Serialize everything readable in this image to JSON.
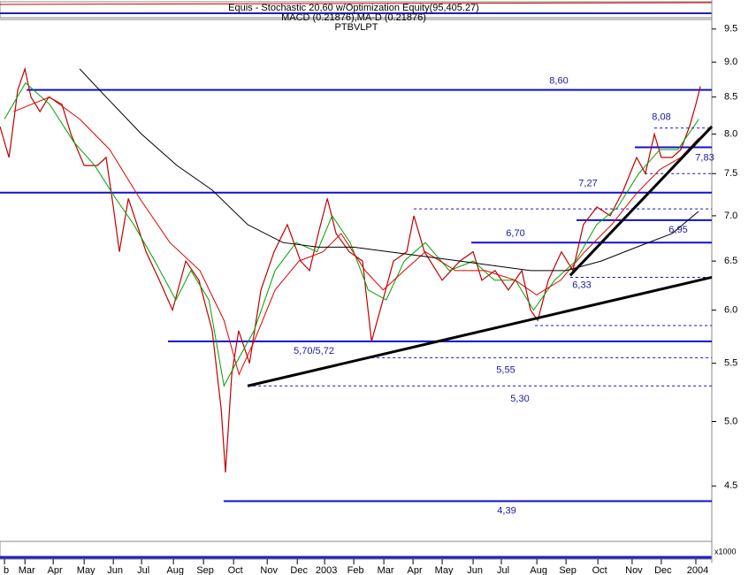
{
  "chart_data": {
    "type": "line",
    "header": [
      "Equis - Stochastic 20,60 w/Optimization Equity(95,405.27)",
      "MACD (0.21876),MA-D (0.21876)",
      "PTBVLPT"
    ],
    "volume_unit": "x1000",
    "log_y": true,
    "xlim": [
      -0.15,
      23.53
    ],
    "xticks": [
      {
        "value": 0,
        "label": "b"
      },
      {
        "value": 0.68,
        "label": "Mar"
      },
      {
        "value": 1.62,
        "label": "Apr"
      },
      {
        "value": 2.65,
        "label": "May"
      },
      {
        "value": 3.62,
        "label": "Jun"
      },
      {
        "value": 4.56,
        "label": "Jul"
      },
      {
        "value": 5.62,
        "label": "Aug"
      },
      {
        "value": 6.62,
        "label": "Sep"
      },
      {
        "value": 7.62,
        "label": "Oct"
      },
      {
        "value": 8.74,
        "label": "Nov"
      },
      {
        "value": 9.74,
        "label": "Dec"
      },
      {
        "value": 10.65,
        "label": "2003"
      },
      {
        "value": 11.62,
        "label": "Feb"
      },
      {
        "value": 12.62,
        "label": "Mar"
      },
      {
        "value": 13.59,
        "label": "Apr"
      },
      {
        "value": 14.56,
        "label": "May"
      },
      {
        "value": 15.59,
        "label": "Jun"
      },
      {
        "value": 16.53,
        "label": "Jul"
      },
      {
        "value": 17.71,
        "label": "Aug"
      },
      {
        "value": 18.68,
        "label": "Sep"
      },
      {
        "value": 19.74,
        "label": "Oct"
      },
      {
        "value": 20.88,
        "label": "Nov"
      },
      {
        "value": 21.85,
        "label": "Dec"
      },
      {
        "value": 23.0,
        "label": "2004"
      }
    ],
    "ylim": [
      4.11,
      9.65
    ],
    "yticks": [
      9.5,
      {
        "value": 9,
        "label": "9.0"
      },
      8.5,
      {
        "value": 8,
        "label": "8.0"
      },
      7.5,
      {
        "value": 7,
        "label": "7.0"
      },
      6.5,
      {
        "value": 6,
        "label": "6.0"
      },
      5.5,
      {
        "value": 5,
        "label": "5.0"
      },
      4.5
    ],
    "series": [
      {
        "color": "#c00000",
        "width": 1.2,
        "x": [
          -0.15,
          0.15,
          0.44,
          0.68,
          0.88,
          1.18,
          1.47,
          1.91,
          2.21,
          2.65,
          3.09,
          3.38,
          3.62,
          3.82,
          4.12,
          4.41,
          4.71,
          5.15,
          5.59,
          6.03,
          6.47,
          6.91,
          7.21,
          7.35,
          7.56,
          7.79,
          8.15,
          8.53,
          8.97,
          9.41,
          9.85,
          10.15,
          10.44,
          10.74,
          11.03,
          11.47,
          11.91,
          12.21,
          12.5,
          12.94,
          13.38,
          13.62,
          13.97,
          14.56,
          15.15,
          15.59,
          15.88,
          16.32,
          16.76,
          17.21,
          17.5,
          17.74,
          18.09,
          18.53,
          18.91,
          19.26,
          19.71,
          20.15,
          20.59,
          21.03,
          21.32,
          21.62,
          21.85,
          22.21,
          22.5,
          22.79,
          23.0,
          23.15
        ],
        "values": [
          8.1,
          7.7,
          8.6,
          8.9,
          8.5,
          8.3,
          8.5,
          8.4,
          8.0,
          7.6,
          7.6,
          7.7,
          7.1,
          6.6,
          7.2,
          6.9,
          6.6,
          6.3,
          6.0,
          6.5,
          6.3,
          5.8,
          5.1,
          4.6,
          5.4,
          5.8,
          5.5,
          6.2,
          6.6,
          6.9,
          6.5,
          6.4,
          6.8,
          7.2,
          6.8,
          6.6,
          6.5,
          5.7,
          6.0,
          6.5,
          6.6,
          7.0,
          6.6,
          6.3,
          6.5,
          6.6,
          6.3,
          6.4,
          6.2,
          6.4,
          6.0,
          5.9,
          6.3,
          6.6,
          6.4,
          6.9,
          7.1,
          7.0,
          7.3,
          7.7,
          7.5,
          8.0,
          7.7,
          7.7,
          7.8,
          8.1,
          8.4,
          8.65
        ]
      },
      {
        "color": "#00a000",
        "width": 1,
        "x": [
          0,
          0.7,
          1.5,
          2.3,
          3.0,
          3.7,
          4.3,
          5.0,
          5.7,
          6.2,
          6.8,
          7.3,
          7.7,
          8.3,
          9.0,
          9.7,
          10.4,
          10.9,
          11.5,
          12.1,
          12.7,
          13.3,
          14.0,
          14.8,
          15.6,
          16.3,
          17.0,
          17.6,
          18.3,
          19.0,
          19.7,
          20.4,
          21.1,
          21.8,
          22.4,
          23.1
        ],
        "values": [
          8.2,
          8.7,
          8.4,
          7.9,
          7.6,
          7.2,
          6.9,
          6.5,
          6.1,
          6.4,
          6.1,
          5.3,
          5.5,
          5.8,
          6.4,
          6.7,
          6.6,
          7.0,
          6.7,
          6.2,
          6.1,
          6.5,
          6.7,
          6.4,
          6.5,
          6.3,
          6.3,
          6.0,
          6.3,
          6.5,
          6.9,
          7.1,
          7.5,
          7.8,
          7.8,
          8.2
        ]
      },
      {
        "color": "#e00000",
        "width": 1,
        "x": [
          0.3,
          1.5,
          2.5,
          3.5,
          4.5,
          5.5,
          6.5,
          7.3,
          7.8,
          8.3,
          9.0,
          9.8,
          10.6,
          11.2,
          12.0,
          12.6,
          13.3,
          14.0,
          15.0,
          16.0,
          17.0,
          17.7,
          18.5,
          19.3,
          20.2,
          21.0,
          21.8,
          22.5,
          23.1
        ],
        "values": [
          8.3,
          8.5,
          8.2,
          7.8,
          7.2,
          6.7,
          6.4,
          5.9,
          5.4,
          5.7,
          6.2,
          6.5,
          6.6,
          6.8,
          6.4,
          6.2,
          6.4,
          6.6,
          6.4,
          6.4,
          6.3,
          6.15,
          6.3,
          6.6,
          6.9,
          7.25,
          7.55,
          7.7,
          7.95
        ]
      },
      {
        "color": "#000000",
        "width": 1,
        "x": [
          2.5,
          3.38,
          4.56,
          5.74,
          6.91,
          8.09,
          9.26,
          10.44,
          11.62,
          12.79,
          13.97,
          15.15,
          16.32,
          17.5,
          18.68,
          19.85,
          21.03,
          22.21,
          23.09
        ],
        "values": [
          8.9,
          8.5,
          8.0,
          7.6,
          7.3,
          6.9,
          6.7,
          6.65,
          6.65,
          6.6,
          6.55,
          6.5,
          6.45,
          6.4,
          6.4,
          6.5,
          6.65,
          6.8,
          7.05
        ]
      }
    ],
    "levels": [
      {
        "value": 8.6,
        "label": "8,60",
        "start": 0.74,
        "dashed": false
      },
      {
        "value": 8.08,
        "label": "8,08",
        "start": 21.62,
        "dashed": true
      },
      {
        "value": 7.83,
        "label": "7,83",
        "start": 20.97,
        "dashed": false
      },
      {
        "value": 7.5,
        "label": null,
        "start": 21.3,
        "dashed": true
      },
      {
        "value": 7.27,
        "label": "7,27",
        "start": -0.15,
        "dashed": false
      },
      {
        "value": 7.08,
        "label": null,
        "start": 13.62,
        "dashed": true
      },
      {
        "value": 6.95,
        "label": "6,95",
        "start": 19.03,
        "dashed": false
      },
      {
        "value": 6.7,
        "label": "6,70",
        "start": 15.53,
        "dashed": false
      },
      {
        "value": 6.33,
        "label": "6,33",
        "start": 18.82,
        "dashed": true
      },
      {
        "value": 5.85,
        "label": null,
        "start": 17.65,
        "dashed": true
      },
      {
        "value": 5.7,
        "label": "5,70/5,72",
        "start": 5.44,
        "dashed": false
      },
      {
        "value": 5.55,
        "label": "5,55",
        "start": 12.21,
        "dashed": true
      },
      {
        "value": 5.3,
        "label": "5,30",
        "start": 8.09,
        "dashed": true
      },
      {
        "value": 4.39,
        "label": "4,39",
        "start": 7.29,
        "dashed": false
      }
    ],
    "level_color": "#1010d0",
    "trendlines": [
      {
        "x": [
          8.09,
          23.53
        ],
        "y": [
          5.3,
          6.33
        ]
      },
      {
        "x": [
          18.82,
          23.53
        ],
        "y": [
          6.35,
          8.1
        ]
      }
    ]
  }
}
